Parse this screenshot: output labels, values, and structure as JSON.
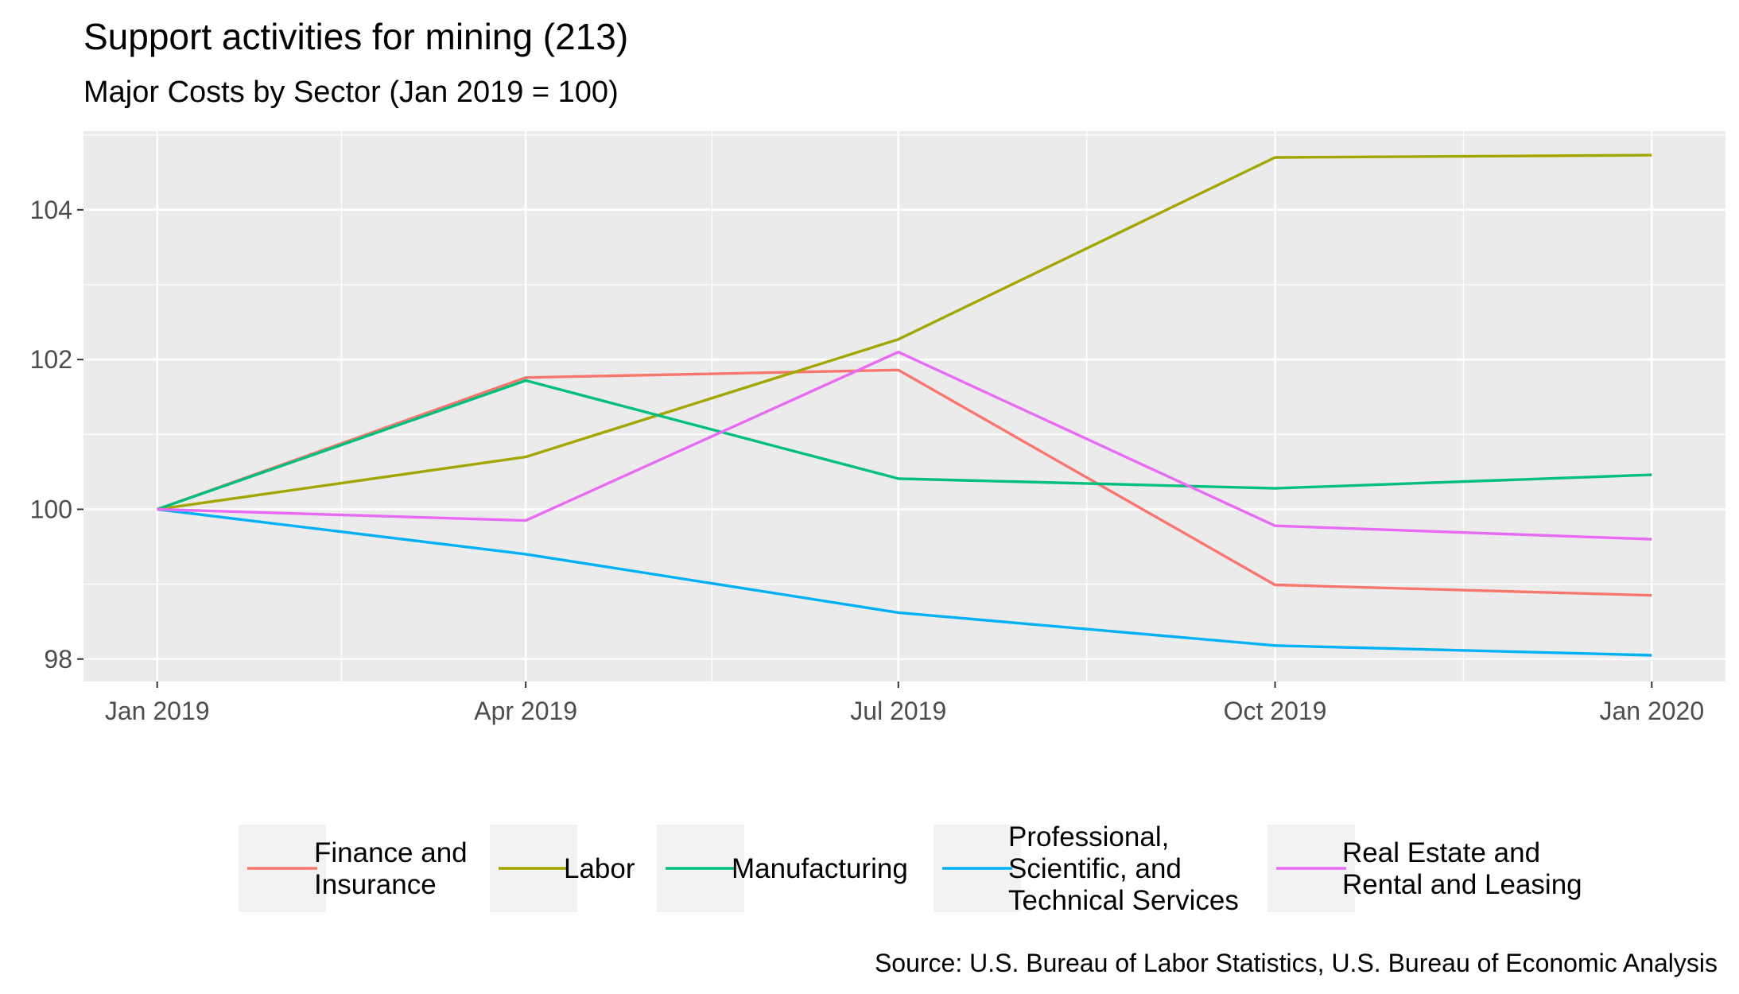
{
  "chart_data": {
    "type": "line",
    "title": "Support activities for mining (213)",
    "subtitle": "Major Costs by Sector (Jan 2019 = 100)",
    "caption": "Source: U.S. Bureau of Labor Statistics, U.S. Bureau of Economic Analysis",
    "xlabel": "",
    "ylabel": "",
    "x": [
      "2019-01-01",
      "2019-04-01",
      "2019-07-01",
      "2019-10-01",
      "2020-01-01"
    ],
    "xlim": [
      "2018-12-14",
      "2020-01-19"
    ],
    "ylim": [
      97.7,
      105.05
    ],
    "x_ticks": [
      {
        "date": "2019-01-01",
        "label": "Jan 2019"
      },
      {
        "date": "2019-04-01",
        "label": "Apr 2019"
      },
      {
        "date": "2019-07-01",
        "label": "Jul 2019"
      },
      {
        "date": "2019-10-01",
        "label": "Oct 2019"
      },
      {
        "date": "2020-01-01",
        "label": "Jan 2020"
      }
    ],
    "y_ticks": [
      98,
      100,
      102,
      104
    ],
    "grid": true,
    "legend_position": "bottom",
    "series": [
      {
        "name": "Finance and\nInsurance",
        "color": "#F8766D",
        "values": [
          100,
          101.76,
          101.86,
          98.99,
          98.85
        ]
      },
      {
        "name": "Labor",
        "color": "#A3A500",
        "values": [
          100,
          100.7,
          102.27,
          104.7,
          104.73
        ]
      },
      {
        "name": "Manufacturing",
        "color": "#00BF7D",
        "values": [
          100,
          101.72,
          100.41,
          100.28,
          100.46
        ]
      },
      {
        "name": "Professional,\nScientific, and\nTechnical Services",
        "color": "#00B0F6",
        "values": [
          100,
          99.4,
          98.62,
          98.18,
          98.05
        ]
      },
      {
        "name": "Real Estate and\nRental and Leasing",
        "color": "#E76BF3",
        "values": [
          100,
          99.85,
          102.1,
          99.78,
          99.6
        ]
      }
    ]
  }
}
